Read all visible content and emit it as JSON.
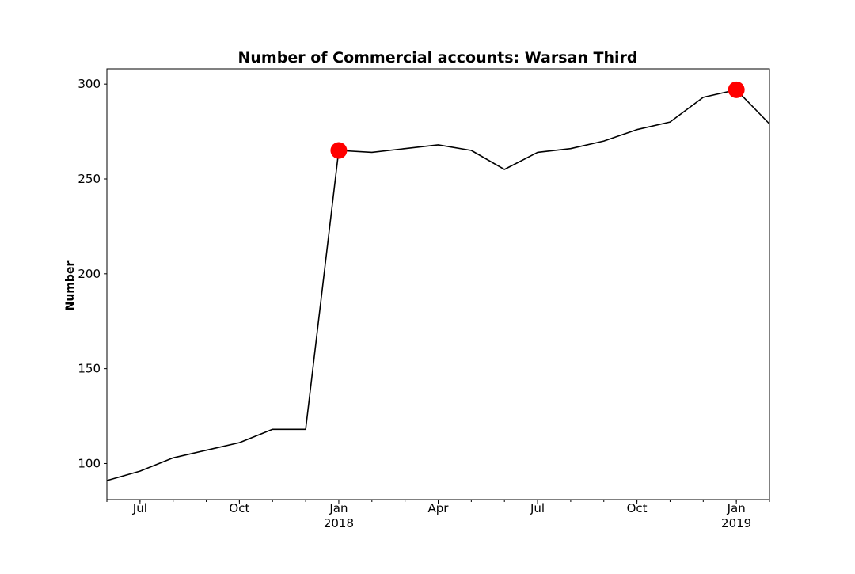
{
  "chart_data": {
    "type": "line",
    "title": "Number of Commercial accounts: Warsan Third",
    "xlabel": "",
    "ylabel": "Number",
    "xlim": [
      "2017-06",
      "2019-02"
    ],
    "ylim": [
      81,
      308
    ],
    "y_ticks": [
      100,
      150,
      200,
      250,
      300
    ],
    "x_ticks": [
      {
        "date": "2017-07",
        "label": "Jul",
        "year": ""
      },
      {
        "date": "2017-10",
        "label": "Oct",
        "year": ""
      },
      {
        "date": "2018-01",
        "label": "Jan",
        "year": "2018"
      },
      {
        "date": "2018-04",
        "label": "Apr",
        "year": ""
      },
      {
        "date": "2018-07",
        "label": "Jul",
        "year": ""
      },
      {
        "date": "2018-10",
        "label": "Oct",
        "year": ""
      },
      {
        "date": "2019-01",
        "label": "Jan",
        "year": "2019"
      }
    ],
    "grid": false,
    "series": [
      {
        "color": "#000000",
        "x": [
          "2017-06",
          "2017-07",
          "2017-08",
          "2017-09",
          "2017-10",
          "2017-11",
          "2017-12",
          "2018-01",
          "2018-02",
          "2018-03",
          "2018-04",
          "2018-05",
          "2018-06",
          "2018-07",
          "2018-08",
          "2018-09",
          "2018-10",
          "2018-11",
          "2018-12",
          "2019-01",
          "2019-02"
        ],
        "values": [
          91,
          96,
          103,
          107,
          111,
          118,
          118,
          265,
          264,
          266,
          268,
          265,
          255,
          264,
          266,
          270,
          276,
          280,
          293,
          297,
          279
        ]
      }
    ],
    "highlights": {
      "color": "#ff0000",
      "points": [
        {
          "x": "2018-01",
          "value": 265
        },
        {
          "x": "2019-01",
          "value": 297
        }
      ]
    }
  }
}
